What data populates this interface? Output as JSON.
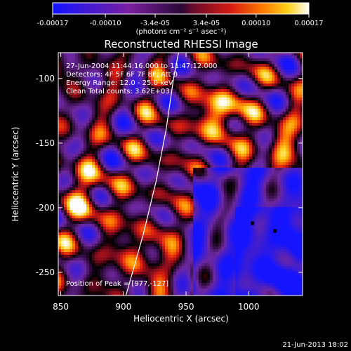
{
  "chart_data": {
    "type": "heatmap",
    "title": "Reconstructed RHESSI Image",
    "xlabel": "Heliocentric X (arcsec)",
    "ylabel": "Heliocentric Y (arcsec)",
    "xlim": [
      848,
      1043
    ],
    "ylim": [
      -268,
      -80
    ],
    "x_ticks": [
      850,
      900,
      950,
      1000
    ],
    "y_ticks": [
      -100,
      -150,
      -200,
      -250
    ],
    "colorbar": {
      "ticks": [
        "-0.00017",
        "-0.00010",
        "-3.4e-05",
        "3.4e-05",
        "0.00010",
        "0.00017"
      ],
      "tick_values": [
        -0.00017,
        -0.0001,
        -3.4e-05,
        3.4e-05,
        0.0001,
        0.00017
      ],
      "units": "(photons cm⁻² s⁻¹ asec⁻²)",
      "range": [
        -0.00017,
        0.00017
      ],
      "colormap": "blue-purple-red-orange-yellow-white"
    },
    "annotations": [
      "27-Jun-2004 11:44:16.000 to 11:47:12.000",
      "Detectors: 4F 5F 6F 7F 8F, Att 0",
      "Energy Range: 12.0 - 25.0 keV",
      "Clean     Total counts: 3.62E+03"
    ],
    "peak_label": "Position of Peak = [977,-127]",
    "limb_curve": [
      [
        902,
        -268
      ],
      [
        916,
        -220
      ],
      [
        926,
        -180
      ],
      [
        934,
        -140
      ],
      [
        940,
        -100
      ],
      [
        944,
        -80
      ]
    ],
    "markers": [
      [
        1003,
        -212
      ],
      [
        1021,
        -218
      ]
    ],
    "peak": [
      977,
      -127
    ]
  },
  "footer": {
    "timestamp": "21-Jun-2013 18:02"
  },
  "colors": {
    "background": "#000000",
    "text": "#ffffff"
  }
}
